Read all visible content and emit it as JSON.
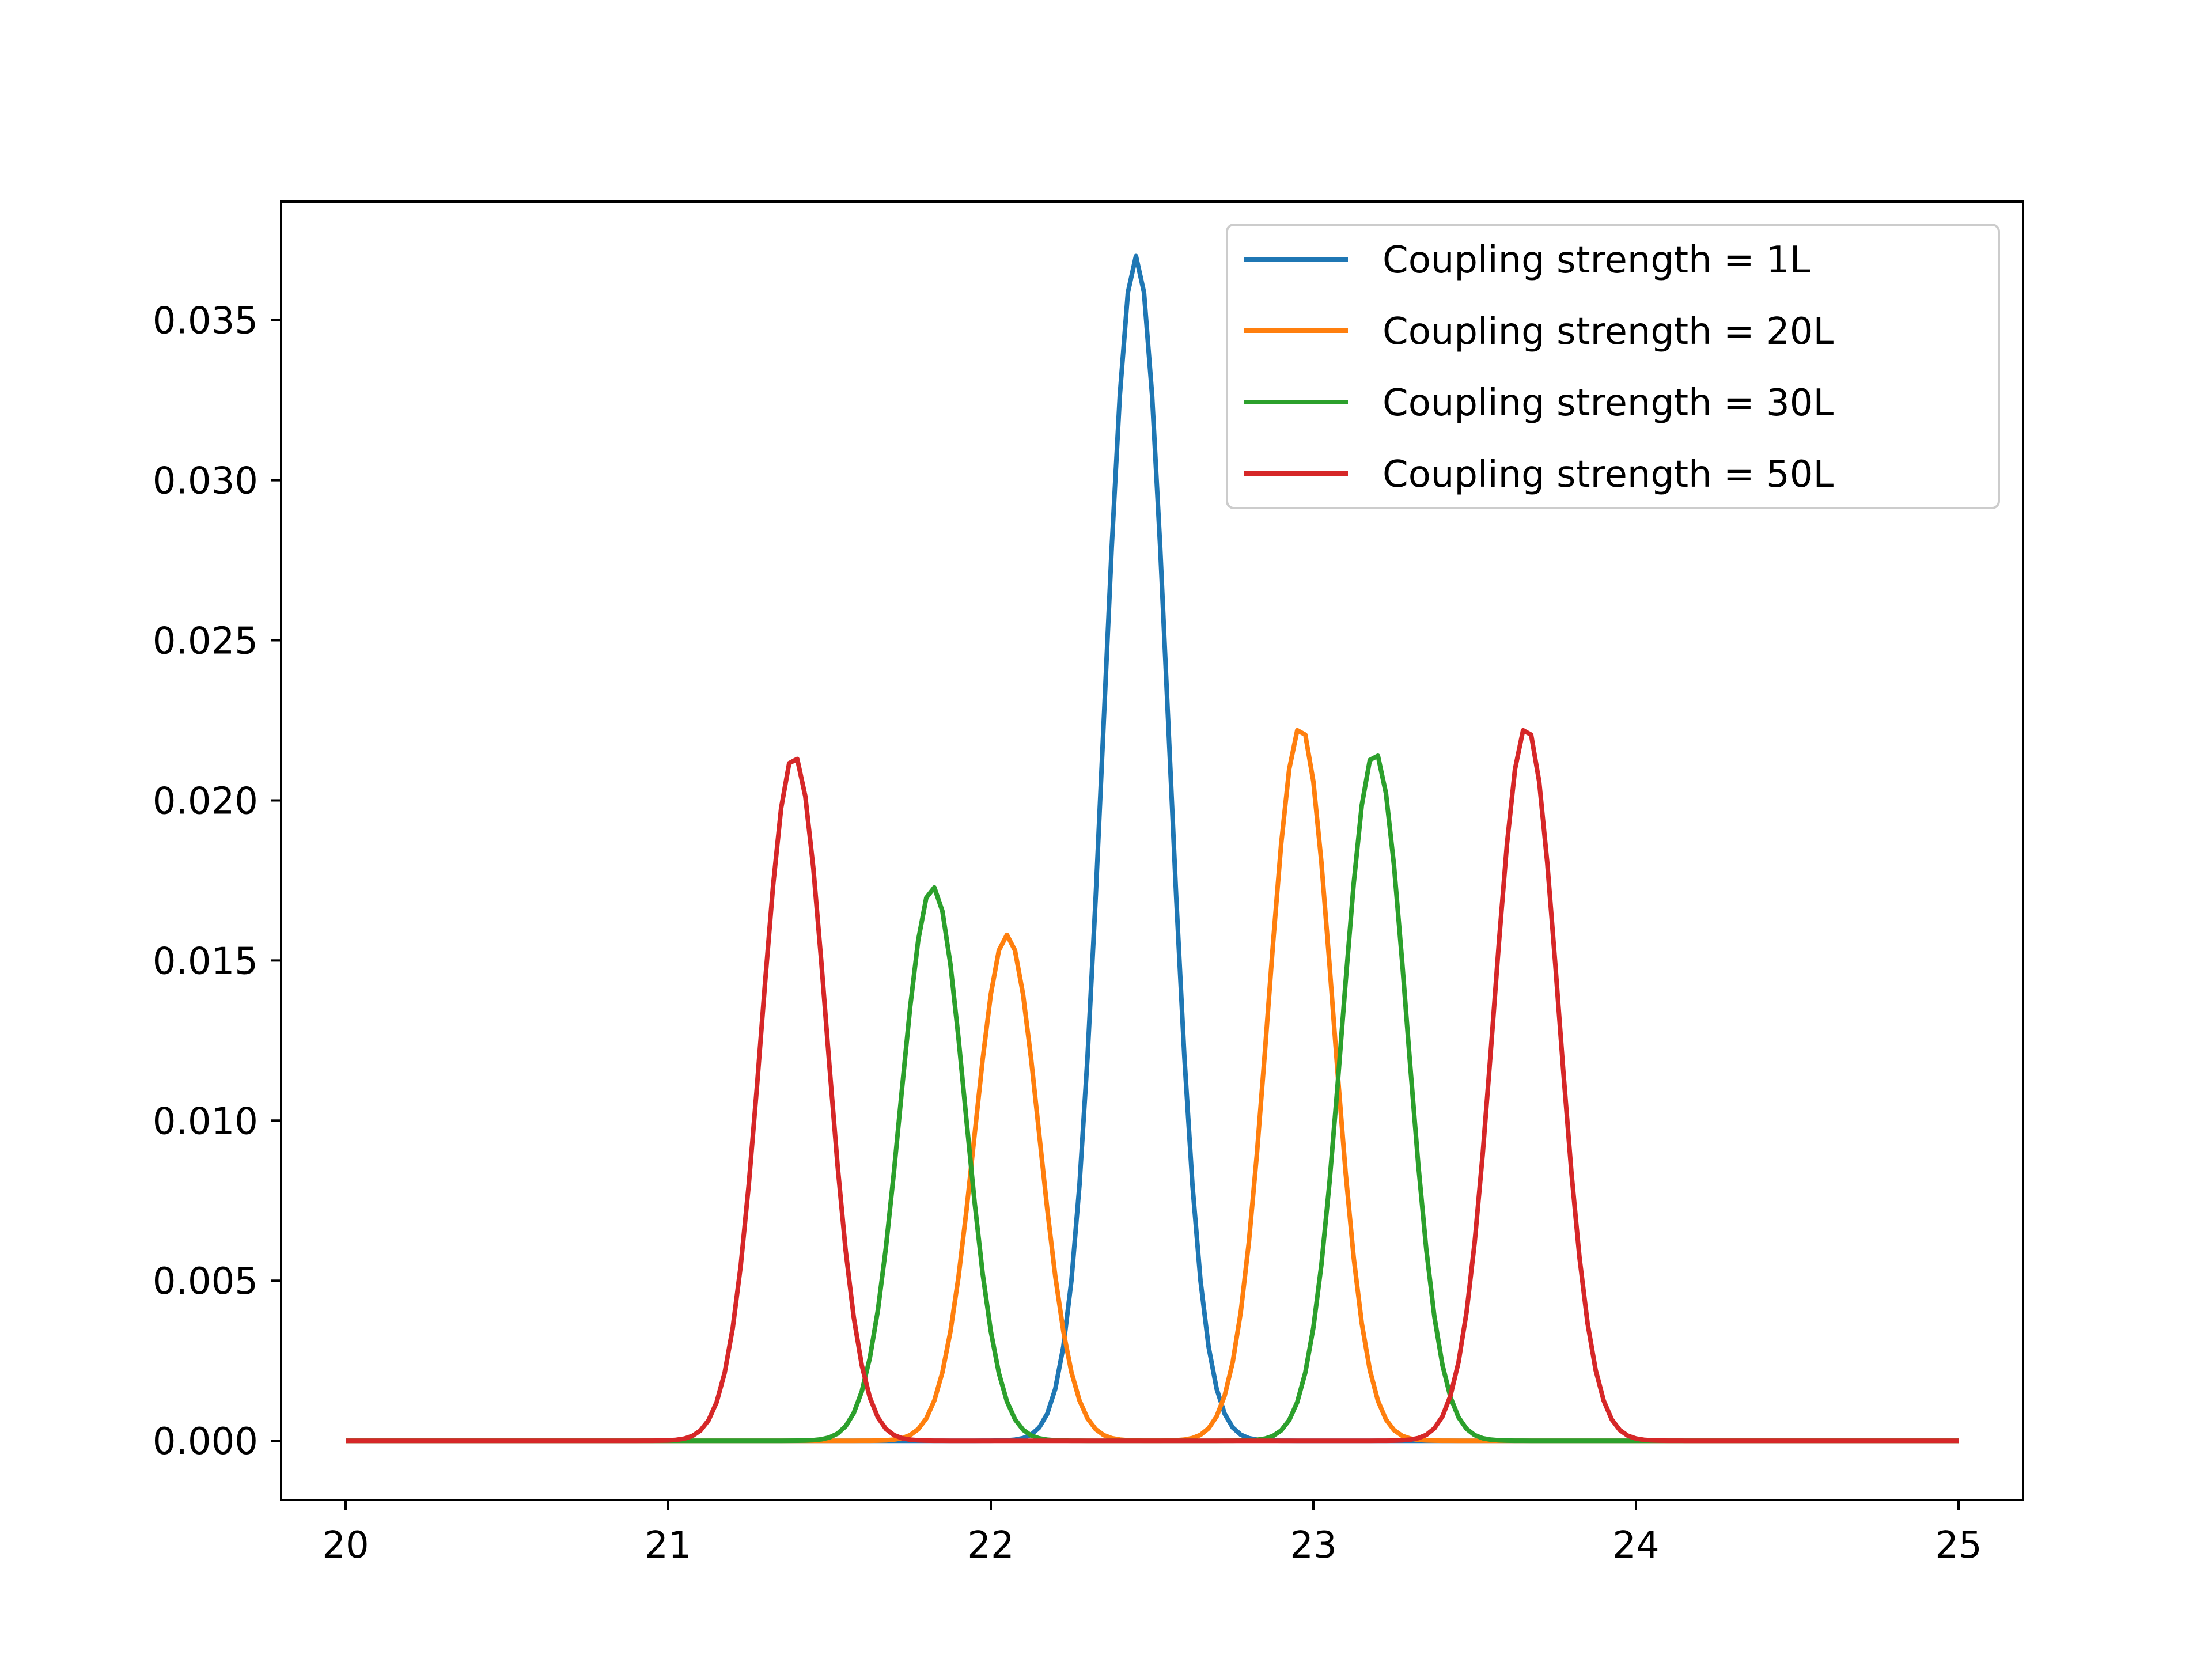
{
  "chart_data": {
    "type": "line",
    "title": "",
    "xlabel": "",
    "ylabel": "",
    "xlim": [
      19.8,
      25.2
    ],
    "ylim": [
      -0.00185,
      0.0387
    ],
    "grid": false,
    "legend_position": "top-right",
    "x_ticks": [
      20,
      21,
      22,
      23,
      24,
      25
    ],
    "x_tick_labels": [
      "20",
      "21",
      "22",
      "23",
      "24",
      "25"
    ],
    "y_ticks": [
      0.0,
      0.005,
      0.01,
      0.015,
      0.02,
      0.025,
      0.03,
      0.035
    ],
    "y_tick_labels": [
      "0.000",
      "0.005",
      "0.010",
      "0.015",
      "0.020",
      "0.025",
      "0.030",
      "0.035"
    ],
    "series": [
      {
        "name": "Coupling strength = 1L",
        "color": "#1f77b4",
        "peaks": [
          {
            "center": 22.45,
            "height": 0.037,
            "sigma": 0.1
          }
        ]
      },
      {
        "name": "Coupling strength = 20L",
        "color": "#ff7f0e",
        "peaks": [
          {
            "center": 22.05,
            "height": 0.0158,
            "sigma": 0.1
          },
          {
            "center": 22.96,
            "height": 0.0223,
            "sigma": 0.1
          }
        ]
      },
      {
        "name": "Coupling strength = 30L",
        "color": "#2ca02c",
        "peaks": [
          {
            "center": 21.82,
            "height": 0.0173,
            "sigma": 0.1
          },
          {
            "center": 23.19,
            "height": 0.0215,
            "sigma": 0.1
          }
        ]
      },
      {
        "name": "Coupling strength = 50L",
        "color": "#d62728",
        "peaks": [
          {
            "center": 21.39,
            "height": 0.0214,
            "sigma": 0.1
          },
          {
            "center": 23.66,
            "height": 0.0223,
            "sigma": 0.1
          }
        ]
      }
    ],
    "x_range": [
      20,
      25
    ],
    "samples": 201
  }
}
